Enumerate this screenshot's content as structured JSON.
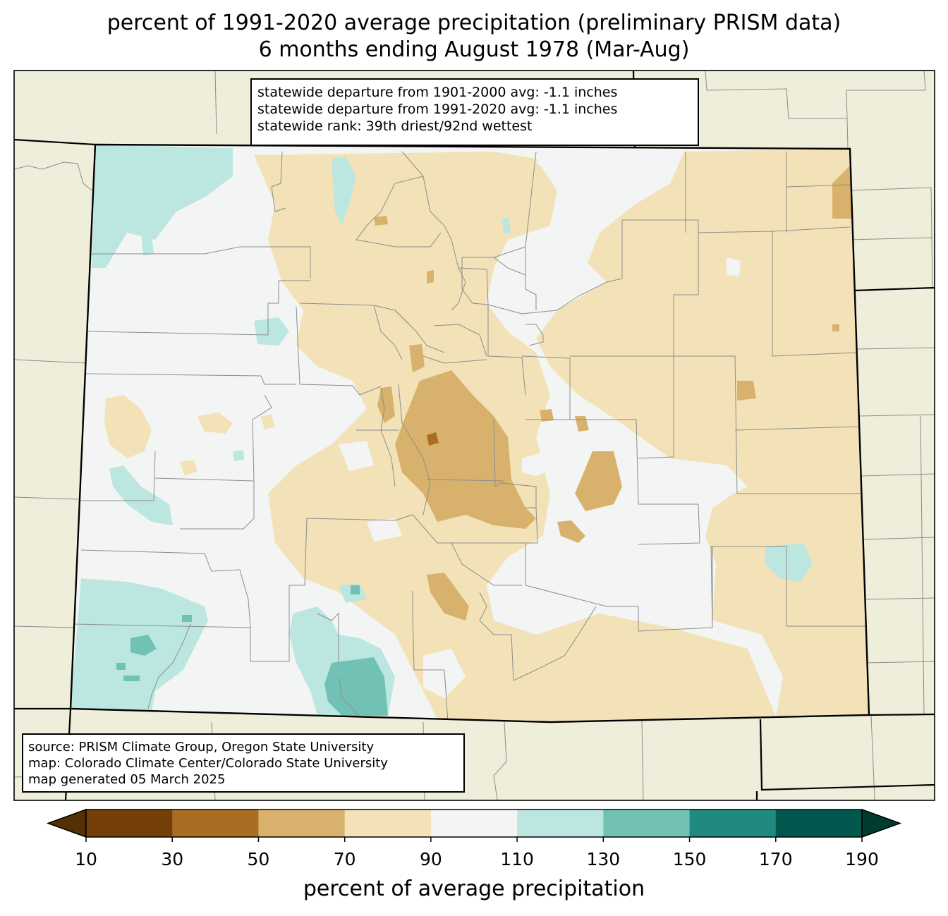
{
  "title": {
    "line1": "percent of 1991-2020 average precipitation (preliminary PRISM data)",
    "line2": "6 months ending August 1978 (Mar-Aug)"
  },
  "stats": {
    "line1": "statewide departure from 1901-2000 avg: -1.1 inches",
    "line2": "statewide departure from 1991-2020 avg: -1.1 inches",
    "line3": "statewide rank: 39th driest/92nd wettest"
  },
  "source": {
    "line1": "source: PRISM Climate Group, Oregon State University",
    "line2": "map: Colorado Climate Center/Colorado State University",
    "line3": "map generated 05 March 2025"
  },
  "colorbar": {
    "label": "percent of average precipitation",
    "ticks": [
      "10",
      "30",
      "50",
      "70",
      "90",
      "110",
      "130",
      "150",
      "170",
      "190"
    ],
    "under_color": "#543005",
    "over_color": "#003c30",
    "colors": [
      "#744007",
      "#a96d23",
      "#d8b26c",
      "#f3e2b8",
      "#f3f5f4",
      "#bce7e1",
      "#71c2b4",
      "#208a80",
      "#00574d"
    ]
  },
  "map": {
    "land_color": "#efeedb",
    "state_fill": "#f3f5f4",
    "legend_colors": {
      "dry_light": "#f3e2b8",
      "dry_medium": "#d8b26c",
      "dry_dark": "#a96d23",
      "wet_light": "#bce7e1",
      "wet_medium": "#71c2b4"
    }
  }
}
